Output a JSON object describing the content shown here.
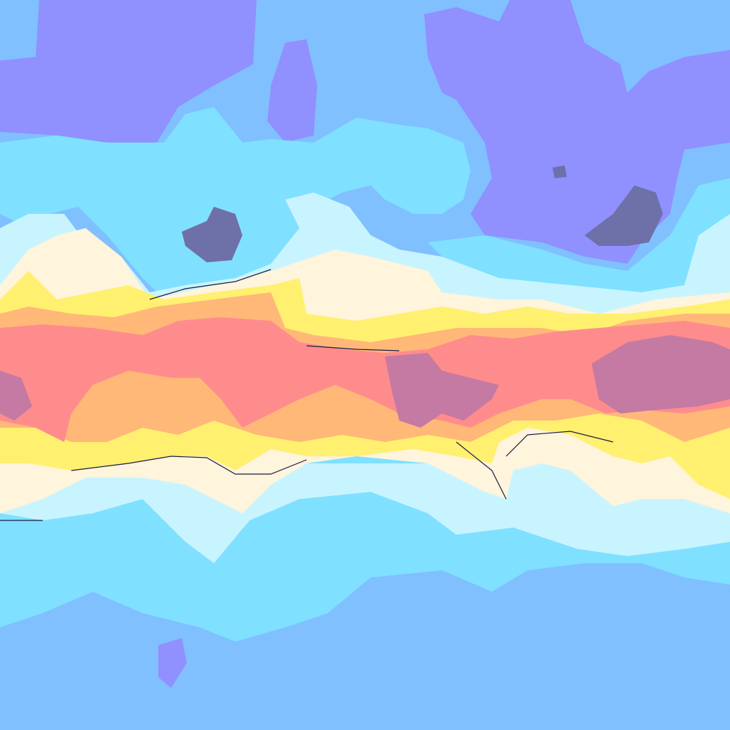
{
  "map": {
    "palette": {
      "sky": "#80c0ff",
      "violet": "#9090ff",
      "dusk": "#6e70a8",
      "cyan": "#80e0ff",
      "ice": "#c8f4ff",
      "cream": "#fff4dc",
      "yellow": "#fff070",
      "orange": "#ffb878",
      "salmon": "#ff8c8c",
      "mauve": "#c47aa2"
    }
  }
}
